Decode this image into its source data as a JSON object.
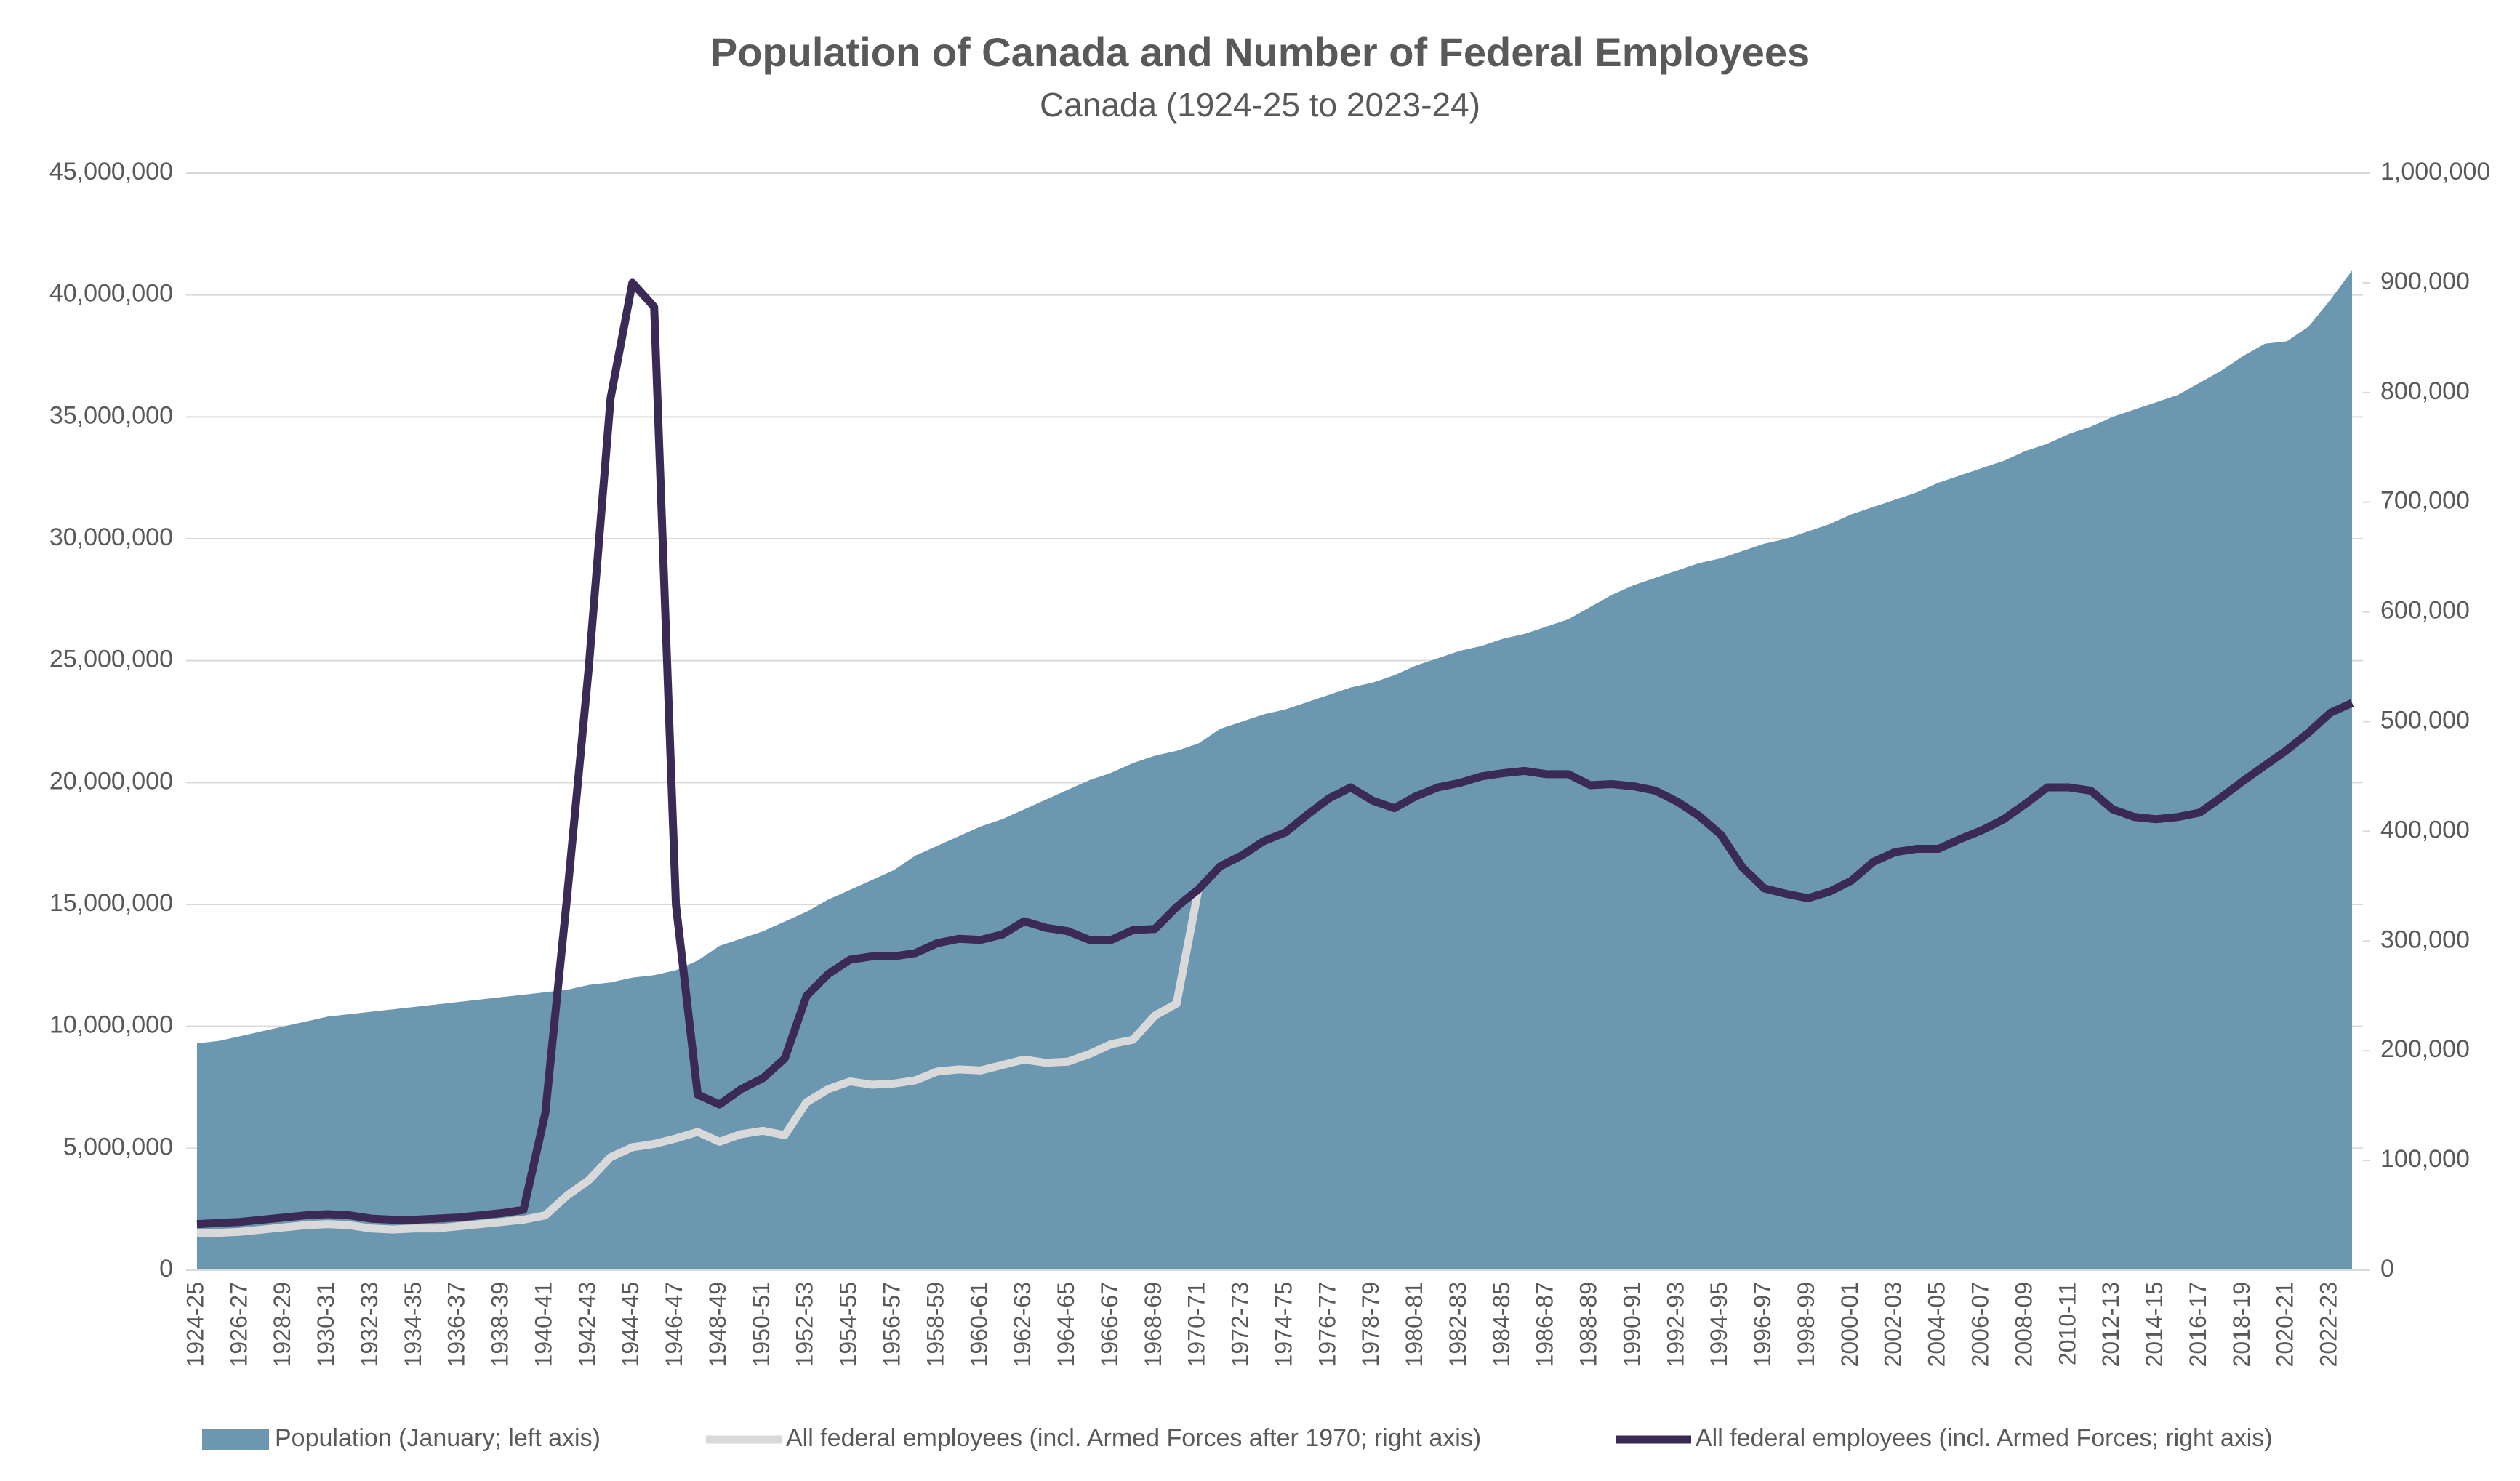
{
  "chart_data": {
    "type": "line",
    "title": "Population of Canada and Number of Federal Employees",
    "subtitle": "Canada (1924-25 to 2023-24)",
    "categories": [
      "1924-25",
      null,
      "1926-27",
      null,
      "1928-29",
      null,
      "1930-31",
      null,
      "1932-33",
      null,
      "1934-35",
      null,
      "1936-37",
      null,
      "1938-39",
      null,
      "1940-41",
      null,
      "1942-43",
      null,
      "1944-45",
      null,
      "1946-47",
      null,
      "1948-49",
      null,
      "1950-51",
      null,
      "1952-53",
      null,
      "1954-55",
      null,
      "1956-57",
      null,
      "1958-59",
      null,
      "1960-61",
      null,
      "1962-63",
      null,
      "1964-65",
      null,
      "1966-67",
      null,
      "1968-69",
      null,
      "1970-71",
      null,
      "1972-73",
      null,
      "1974-75",
      null,
      "1976-77",
      null,
      "1978-79",
      null,
      "1980-81",
      null,
      "1982-83",
      null,
      "1984-85",
      null,
      "1986-87",
      null,
      "1988-89",
      null,
      "1990-91",
      null,
      "1992-93",
      null,
      "1994-95",
      null,
      "1996-97",
      null,
      "1998-99",
      null,
      "2000-01",
      null,
      "2002-03",
      null,
      "2004-05",
      null,
      "2006-07",
      null,
      "2008-09",
      null,
      "2010-11",
      null,
      "2012-13",
      null,
      "2014-15",
      null,
      "2016-17",
      null,
      "2018-19",
      null,
      "2020-21",
      null,
      "2022-23",
      null
    ],
    "series": [
      {
        "name": "Population (January; left axis)",
        "type": "area",
        "color": "#6b97b0",
        "axis": "y",
        "values": [
          9300000,
          9400000,
          9600000,
          9800000,
          10000000,
          10200000,
          10400000,
          10500000,
          10600000,
          10700000,
          10800000,
          10900000,
          11000000,
          11100000,
          11200000,
          11300000,
          11400000,
          11500000,
          11700000,
          11800000,
          12000000,
          12100000,
          12300000,
          12700000,
          13300000,
          13600000,
          13900000,
          14300000,
          14700000,
          15200000,
          15600000,
          16000000,
          16400000,
          17000000,
          17400000,
          17800000,
          18200000,
          18500000,
          18900000,
          19300000,
          19700000,
          20100000,
          20400000,
          20800000,
          21100000,
          21300000,
          21600000,
          22200000,
          22500000,
          22800000,
          23000000,
          23300000,
          23600000,
          23900000,
          24100000,
          24400000,
          24800000,
          25100000,
          25400000,
          25600000,
          25900000,
          26100000,
          26400000,
          26700000,
          27200000,
          27700000,
          28100000,
          28400000,
          28700000,
          29000000,
          29200000,
          29500000,
          29800000,
          30000000,
          30300000,
          30600000,
          31000000,
          31300000,
          31600000,
          31900000,
          32300000,
          32600000,
          32900000,
          33200000,
          33600000,
          33900000,
          34300000,
          34600000,
          35000000,
          35300000,
          35600000,
          35900000,
          36400000,
          36900000,
          37500000,
          38000000,
          38100000,
          38700000,
          39800000,
          41000000
        ]
      },
      {
        "name": "All federal employees (incl. Armed Forces after 1970; right axis)",
        "type": "line",
        "color": "#d9d9d9",
        "axis": "y2",
        "values": [
          34000,
          34000,
          35000,
          37000,
          39000,
          41000,
          42000,
          41000,
          38000,
          37000,
          38000,
          38000,
          40000,
          42000,
          44000,
          46000,
          50000,
          68000,
          82000,
          103000,
          112000,
          115000,
          120000,
          126000,
          117000,
          124000,
          127000,
          123000,
          153000,
          165000,
          172000,
          169000,
          170000,
          173000,
          181000,
          183000,
          182000,
          187000,
          192000,
          189000,
          190000,
          197000,
          206000,
          210000,
          232000,
          243000,
          347000,
          null,
          null,
          null,
          null,
          null,
          null,
          null,
          null,
          null,
          null,
          null,
          null,
          null,
          null,
          null,
          null,
          null,
          null,
          null,
          null,
          null,
          null,
          null,
          null,
          null,
          null,
          null,
          null,
          null,
          null,
          null,
          null,
          null,
          null,
          null,
          null,
          null,
          null,
          null,
          null,
          null,
          null,
          null,
          null,
          null,
          null,
          null,
          null,
          null,
          null,
          null,
          null,
          null
        ]
      },
      {
        "name": "All federal employees (incl. Armed Forces; right axis)",
        "type": "line",
        "color": "#3b2a56",
        "axis": "y2",
        "values": [
          42000,
          43000,
          44000,
          46000,
          48000,
          50000,
          51000,
          50000,
          47000,
          46000,
          46000,
          47000,
          48000,
          50000,
          52000,
          55000,
          143000,
          340000,
          550000,
          795000,
          900000,
          878000,
          333000,
          160000,
          151000,
          165000,
          175000,
          193000,
          250000,
          270000,
          283000,
          286000,
          286000,
          289000,
          298000,
          302000,
          301000,
          306000,
          318000,
          312000,
          309000,
          301000,
          301000,
          310000,
          311000,
          331000,
          347000,
          368000,
          378000,
          391000,
          399000,
          415000,
          430000,
          440000,
          428000,
          421000,
          432000,
          440000,
          444000,
          450000,
          453000,
          455000,
          452000,
          452000,
          442000,
          443000,
          441000,
          437000,
          427000,
          414000,
          397000,
          367000,
          348000,
          343000,
          339000,
          345000,
          355000,
          372000,
          381000,
          384000,
          384000,
          393000,
          401000,
          411000,
          425000,
          440000,
          440000,
          437000,
          420000,
          413000,
          411000,
          413000,
          417000,
          431000,
          446000,
          460000,
          474000,
          490000,
          508000,
          517000
        ]
      }
    ],
    "ylim": [
      0,
      45000000
    ],
    "yticks": [
      0,
      {
        "value": 5000000,
        "label": "5,000,000"
      },
      {
        "value": 10000000,
        "label": "10,000,000"
      },
      {
        "value": 15000000,
        "label": "15,000,000"
      },
      {
        "value": 20000000,
        "label": "20,000,000"
      },
      {
        "value": 25000000,
        "label": "25,000,000"
      },
      {
        "value": 30000000,
        "label": "30,000,000"
      },
      {
        "value": 35000000,
        "label": "35,000,000"
      },
      {
        "value": 40000000,
        "label": "40,000,000"
      },
      {
        "value": 45000000,
        "label": "45,000,000"
      }
    ],
    "y2lim": [
      0,
      1000000
    ],
    "y2ticks": [
      0,
      {
        "value": 100000,
        "label": "100,000"
      },
      {
        "value": 200000,
        "label": "200,000"
      },
      {
        "value": 300000,
        "label": "300,000"
      },
      {
        "value": 400000,
        "label": "400,000"
      },
      {
        "value": 500000,
        "label": "500,000"
      },
      {
        "value": 600000,
        "label": "600,000"
      },
      {
        "value": 700000,
        "label": "700,000"
      },
      {
        "value": 800000,
        "label": "800,000"
      },
      {
        "value": 900000,
        "label": "900,000"
      },
      {
        "value": 1000000,
        "label": "1,000,000"
      }
    ],
    "grid": true,
    "legend": "bottom"
  }
}
